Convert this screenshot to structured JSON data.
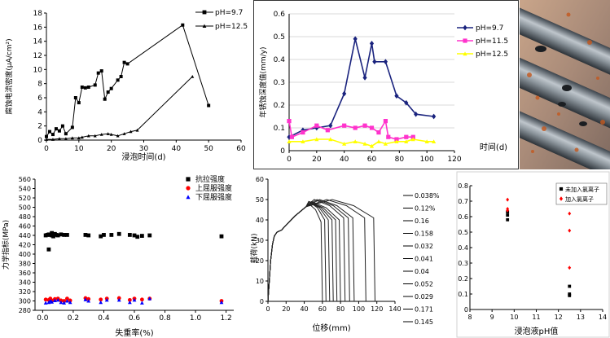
{
  "chart_data": [
    {
      "type": "line",
      "title": "",
      "xlabel": "浸泡时间(d)",
      "ylabel": "腐蚀电流密度(μA/cm²)",
      "xlim": [
        0,
        60
      ],
      "ylim": [
        0,
        18
      ],
      "xticks": [
        "0",
        "10",
        "20",
        "30",
        "40",
        "50",
        "60"
      ],
      "yticks": [
        "0",
        "2",
        "4",
        "6",
        "8",
        "10",
        "12",
        "14",
        "16",
        "18"
      ],
      "legend": "top-right",
      "series": [
        {
          "name": "pH=9.7",
          "marker": "square",
          "points": [
            [
              0,
              0.5
            ],
            [
              1,
              1.2
            ],
            [
              2,
              0.8
            ],
            [
              3,
              1.6
            ],
            [
              4,
              1.3
            ],
            [
              5,
              2.0
            ],
            [
              6,
              0.9
            ],
            [
              8,
              1.8
            ],
            [
              9,
              6.0
            ],
            [
              10,
              5.3
            ],
            [
              11,
              7.5
            ],
            [
              12,
              7.4
            ],
            [
              13,
              7.5
            ],
            [
              15,
              7.8
            ],
            [
              16,
              9.5
            ],
            [
              17,
              9.8
            ],
            [
              18,
              5.8
            ],
            [
              19,
              6.8
            ],
            [
              20,
              7.3
            ],
            [
              22,
              8.5
            ],
            [
              23,
              9.0
            ],
            [
              24,
              11.0
            ],
            [
              25,
              10.8
            ],
            [
              42,
              16.3
            ],
            [
              50,
              4.9
            ]
          ]
        },
        {
          "name": "pH=12.5",
          "marker": "triangle",
          "points": [
            [
              0,
              0.1
            ],
            [
              2,
              0.1
            ],
            [
              4,
              0.2
            ],
            [
              6,
              0.2
            ],
            [
              8,
              0.3
            ],
            [
              10,
              0.3
            ],
            [
              11,
              0.4
            ],
            [
              13,
              0.6
            ],
            [
              15,
              0.6
            ],
            [
              17,
              0.8
            ],
            [
              19,
              0.9
            ],
            [
              20,
              0.8
            ],
            [
              22,
              0.6
            ],
            [
              24,
              0.9
            ],
            [
              26,
              1.2
            ],
            [
              28,
              1.4
            ],
            [
              45,
              9.0
            ]
          ]
        }
      ]
    },
    {
      "type": "line",
      "title": "",
      "xlabel": "时间(d)",
      "ylabel": "年锈蚀深度值(mm/y)",
      "xlim": [
        0,
        120
      ],
      "ylim": [
        0,
        0.6
      ],
      "xticks": [
        "0",
        "20",
        "40",
        "60",
        "80",
        "100",
        "120"
      ],
      "yticks": [
        "0",
        "0.1",
        "0.2",
        "0.3",
        "0.4",
        "0.5",
        "0.6"
      ],
      "legend": "right",
      "series": [
        {
          "name": "pH=9.7",
          "color": "#1a237e",
          "marker": "diamond",
          "points": [
            [
              0,
              0.06
            ],
            [
              10,
              0.09
            ],
            [
              20,
              0.1
            ],
            [
              30,
              0.11
            ],
            [
              40,
              0.25
            ],
            [
              48,
              0.49
            ],
            [
              55,
              0.32
            ],
            [
              60,
              0.47
            ],
            [
              62,
              0.39
            ],
            [
              70,
              0.39
            ],
            [
              78,
              0.24
            ],
            [
              85,
              0.21
            ],
            [
              92,
              0.16
            ],
            [
              105,
              0.15
            ]
          ]
        },
        {
          "name": "pH=11.5",
          "color": "#ff33cc",
          "marker": "square",
          "points": [
            [
              0,
              0.13
            ],
            [
              2,
              0.06
            ],
            [
              10,
              0.08
            ],
            [
              20,
              0.11
            ],
            [
              28,
              0.09
            ],
            [
              40,
              0.11
            ],
            [
              48,
              0.1
            ],
            [
              55,
              0.11
            ],
            [
              60,
              0.1
            ],
            [
              65,
              0.08
            ],
            [
              70,
              0.13
            ],
            [
              72,
              0.06
            ],
            [
              78,
              0.05
            ],
            [
              85,
              0.06
            ],
            [
              90,
              0.06
            ]
          ]
        },
        {
          "name": "pH=12.5",
          "color": "#ffff00",
          "marker": "triangle",
          "points": [
            [
              0,
              0.04
            ],
            [
              10,
              0.04
            ],
            [
              20,
              0.05
            ],
            [
              30,
              0.05
            ],
            [
              40,
              0.03
            ],
            [
              48,
              0.04
            ],
            [
              55,
              0.03
            ],
            [
              60,
              0.02
            ],
            [
              65,
              0.04
            ],
            [
              70,
              0.03
            ],
            [
              78,
              0.04
            ],
            [
              85,
              0.04
            ],
            [
              90,
              0.05
            ],
            [
              100,
              0.04
            ],
            [
              105,
              0.04
            ]
          ]
        }
      ]
    },
    {
      "type": "scatter",
      "title": "",
      "xlabel": "失重率(%)",
      "ylabel": "力学指标(MPa)",
      "xlim": [
        0,
        1.2
      ],
      "ylim": [
        280,
        560
      ],
      "xticks": [
        "0.0",
        "0.2",
        "0.4",
        "0.6",
        "0.8",
        "1.0",
        "1.2"
      ],
      "yticks": [
        "280",
        "300",
        "320",
        "340",
        "360",
        "380",
        "400",
        "420",
        "440",
        "460",
        "480",
        "500",
        "520",
        "540",
        "560"
      ],
      "legend": "top-right",
      "series": [
        {
          "name": "抗拉强度",
          "color": "#000000",
          "marker": "square",
          "points": [
            [
              0.02,
              440
            ],
            [
              0.03,
              441
            ],
            [
              0.04,
              442
            ],
            [
              0.05,
              441
            ],
            [
              0.06,
              445
            ],
            [
              0.06,
              440
            ],
            [
              0.07,
              438
            ],
            [
              0.08,
              443
            ],
            [
              0.09,
              441
            ],
            [
              0.1,
              440
            ],
            [
              0.12,
              442
            ],
            [
              0.14,
              441
            ],
            [
              0.16,
              441
            ],
            [
              0.28,
              441
            ],
            [
              0.3,
              440
            ],
            [
              0.38,
              438
            ],
            [
              0.4,
              441
            ],
            [
              0.45,
              441
            ],
            [
              0.5,
              443
            ],
            [
              0.57,
              441
            ],
            [
              0.6,
              440
            ],
            [
              0.62,
              437
            ],
            [
              0.65,
              439
            ],
            [
              0.7,
              440
            ],
            [
              1.17,
              438
            ],
            [
              0.04,
              410
            ]
          ]
        },
        {
          "name": "上屈服强度",
          "color": "#ff0000",
          "marker": "circle",
          "points": [
            [
              0.02,
              303
            ],
            [
              0.04,
              302
            ],
            [
              0.05,
              305
            ],
            [
              0.06,
              301
            ],
            [
              0.08,
              304
            ],
            [
              0.1,
              305
            ],
            [
              0.12,
              301
            ],
            [
              0.14,
              300
            ],
            [
              0.16,
              305
            ],
            [
              0.18,
              301
            ],
            [
              0.28,
              306
            ],
            [
              0.3,
              304
            ],
            [
              0.38,
              303
            ],
            [
              0.42,
              305
            ],
            [
              0.5,
              306
            ],
            [
              0.57,
              302
            ],
            [
              0.6,
              305
            ],
            [
              0.65,
              303
            ],
            [
              0.7,
              305
            ],
            [
              1.17,
              300
            ]
          ]
        },
        {
          "name": "下屈服强度",
          "color": "#0000ff",
          "marker": "triangle",
          "points": [
            [
              0.02,
              296
            ],
            [
              0.04,
              297
            ],
            [
              0.05,
              300
            ],
            [
              0.06,
              298
            ],
            [
              0.08,
              301
            ],
            [
              0.1,
              302
            ],
            [
              0.12,
              297
            ],
            [
              0.14,
              296
            ],
            [
              0.16,
              300
            ],
            [
              0.18,
              297
            ],
            [
              0.28,
              303
            ],
            [
              0.3,
              300
            ],
            [
              0.38,
              297
            ],
            [
              0.42,
              302
            ],
            [
              0.5,
              302
            ],
            [
              0.57,
              297
            ],
            [
              0.6,
              302
            ],
            [
              0.65,
              296
            ],
            [
              0.7,
              305
            ],
            [
              1.17,
              297
            ]
          ]
        }
      ]
    },
    {
      "type": "line",
      "title": "",
      "xlabel": "位移(mm)",
      "ylabel": "载荷(kN)",
      "xlim": [
        0,
        140
      ],
      "ylim": [
        0,
        60
      ],
      "xticks": [
        "0",
        "20",
        "40",
        "60",
        "80",
        "100",
        "120",
        "140"
      ],
      "yticks": [
        "0",
        "10",
        "20",
        "30",
        "40",
        "50",
        "60"
      ],
      "legend": "right",
      "series": [
        {
          "name": "0.038%",
          "peak": 50,
          "break": 118
        },
        {
          "name": "0.12%",
          "peak": 50,
          "break": 95
        },
        {
          "name": "0.16",
          "peak": 50,
          "break": 90
        },
        {
          "name": "0.158",
          "peak": 50,
          "break": 108
        },
        {
          "name": "0.032",
          "peak": 50,
          "break": 85
        },
        {
          "name": "0.041",
          "peak": 49,
          "break": 80
        },
        {
          "name": "0.04",
          "peak": 49,
          "break": 72
        },
        {
          "name": "0.052",
          "peak": 49,
          "break": 76
        },
        {
          "name": "0.029",
          "peak": 49,
          "break": 68
        },
        {
          "name": "0.171",
          "peak": 49,
          "break": 64
        },
        {
          "name": "0.145",
          "peak": 48,
          "break": 60
        }
      ]
    },
    {
      "type": "scatter",
      "title": "",
      "xlabel": "浸泡液pH值",
      "ylabel": "失重率(%)",
      "xlim": [
        8,
        14
      ],
      "ylim": [
        0,
        0.8
      ],
      "xticks": [
        "8",
        "9",
        "10",
        "11",
        "12",
        "13",
        "14"
      ],
      "yticks": [
        "0",
        "0.1",
        "0.2",
        "0.3",
        "0.4",
        "0.5",
        "0.6",
        "0.7",
        "0.8"
      ],
      "legend": "top-right",
      "series": [
        {
          "name": "未加入氯离子",
          "color": "#000000",
          "marker": "square",
          "points": [
            [
              9.7,
              0.58
            ],
            [
              9.7,
              0.61
            ],
            [
              9.7,
              0.63
            ],
            [
              12.5,
              0.15
            ],
            [
              12.5,
              0.1
            ],
            [
              12.5,
              0.09
            ]
          ]
        },
        {
          "name": "加入氯离子",
          "color": "#ff0000",
          "marker": "diamond",
          "points": [
            [
              9.7,
              0.71
            ],
            [
              9.7,
              0.65
            ],
            [
              9.7,
              0.64
            ],
            [
              12.5,
              0.62
            ],
            [
              12.5,
              0.51
            ],
            [
              12.5,
              0.27
            ]
          ]
        }
      ]
    }
  ]
}
